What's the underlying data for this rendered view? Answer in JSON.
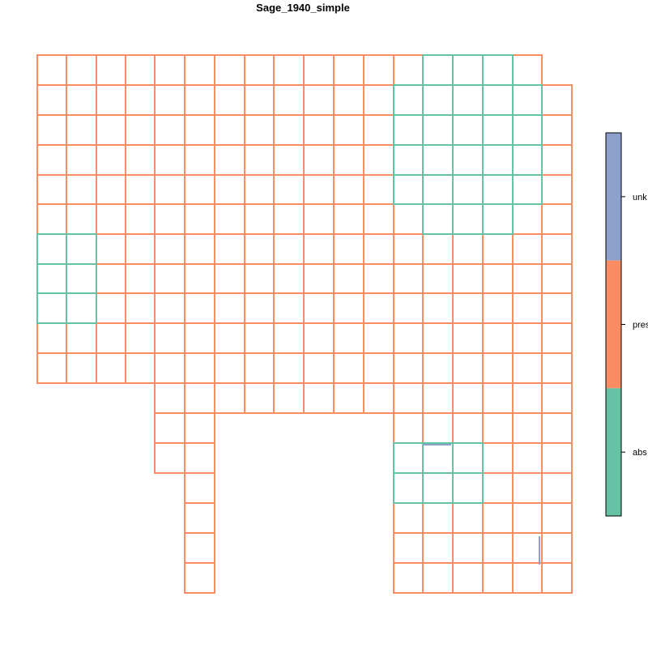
{
  "title": "Sage_1940_simple",
  "legend": {
    "labels": [
      "unk",
      "pres",
      "abs"
    ],
    "colors": {
      "unk": "#8DA0CB",
      "pres": "#FC8D62",
      "abs": "#66C2A5"
    }
  },
  "grid": {
    "x_nodes": [
      46,
      82,
      119,
      155,
      191,
      228,
      265,
      302,
      338,
      375,
      412,
      449,
      486,
      522,
      559,
      596,
      633,
      669,
      706
    ],
    "y_nodes": [
      68,
      105,
      142,
      179,
      216,
      252,
      289,
      326,
      362,
      399,
      436,
      473,
      510,
      547,
      584,
      621,
      658,
      695,
      732
    ],
    "abs_cells": [
      [
        0,
        13
      ],
      [
        0,
        14
      ],
      [
        0,
        15
      ],
      [
        1,
        12
      ],
      [
        1,
        13
      ],
      [
        1,
        14
      ],
      [
        1,
        15
      ],
      [
        1,
        16
      ],
      [
        2,
        12
      ],
      [
        2,
        13
      ],
      [
        2,
        14
      ],
      [
        2,
        15
      ],
      [
        2,
        16
      ],
      [
        3,
        12
      ],
      [
        3,
        13
      ],
      [
        3,
        14
      ],
      [
        3,
        15
      ],
      [
        3,
        16
      ],
      [
        4,
        12
      ],
      [
        4,
        13
      ],
      [
        4,
        14
      ],
      [
        4,
        15
      ],
      [
        4,
        16
      ],
      [
        5,
        13
      ],
      [
        5,
        14
      ],
      [
        5,
        15
      ],
      [
        6,
        0
      ],
      [
        6,
        1
      ],
      [
        7,
        0
      ],
      [
        7,
        1
      ],
      [
        8,
        0
      ],
      [
        8,
        1
      ],
      [
        13,
        12
      ],
      [
        13,
        13
      ],
      [
        13,
        14
      ],
      [
        14,
        12
      ],
      [
        14,
        13
      ],
      [
        14,
        14
      ]
    ],
    "rows": [
      {
        "row": 0,
        "cols": [
          0,
          16
        ]
      },
      {
        "row": 1,
        "cols": [
          0,
          17
        ]
      },
      {
        "row": 2,
        "cols": [
          0,
          17
        ]
      },
      {
        "row": 3,
        "cols": [
          0,
          17
        ]
      },
      {
        "row": 4,
        "cols": [
          0,
          17
        ]
      },
      {
        "row": 5,
        "cols": [
          0,
          17
        ]
      },
      {
        "row": 6,
        "cols": [
          0,
          17
        ]
      },
      {
        "row": 7,
        "cols": [
          0,
          17
        ]
      },
      {
        "row": 8,
        "cols": [
          0,
          17
        ]
      },
      {
        "row": 9,
        "cols": [
          0,
          17
        ]
      },
      {
        "row": 10,
        "cols": [
          0,
          17
        ]
      },
      {
        "row": 11,
        "cols": [
          4,
          17
        ]
      },
      {
        "row": 12,
        "cols": [
          4,
          5,
          12,
          17
        ]
      },
      {
        "row": 13,
        "cols": [
          4,
          5,
          12,
          17
        ]
      },
      {
        "row": 14,
        "cols": [
          5,
          5,
          12,
          17
        ]
      },
      {
        "row": 15,
        "cols": [
          5,
          5,
          12,
          17
        ]
      },
      {
        "row": 16,
        "cols": [
          5,
          5,
          12,
          17
        ]
      },
      {
        "row": 17,
        "cols": [
          5,
          5,
          12,
          17
        ]
      }
    ]
  }
}
